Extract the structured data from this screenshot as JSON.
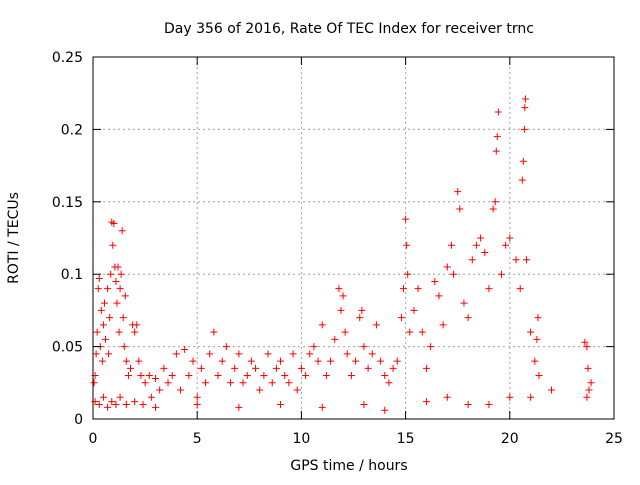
{
  "chart_data": {
    "type": "scatter",
    "title": "Day 356 of 2016, Rate Of TEC Index for receiver trnc",
    "xlabel": "GPS time / hours",
    "ylabel": "ROTI / TECUs",
    "xlim": [
      0,
      25
    ],
    "ylim": [
      0,
      0.25
    ],
    "x_ticks": [
      0,
      5,
      10,
      15,
      20,
      25
    ],
    "x_tick_labels": [
      "0",
      "5",
      "10",
      "15",
      "20",
      "25"
    ],
    "y_ticks": [
      0,
      0.05,
      0.1,
      0.15,
      0.2,
      0.25
    ],
    "y_tick_labels": [
      "0",
      "0.05",
      "0.1",
      "0.15",
      "0.2",
      "0.25"
    ],
    "grid": true,
    "marker": "+",
    "series": [
      {
        "name": "ROTI",
        "points": [
          [
            0.05,
            0.025
          ],
          [
            0.1,
            0.03
          ],
          [
            0.15,
            0.045
          ],
          [
            0.2,
            0.06
          ],
          [
            0.25,
            0.09
          ],
          [
            0.3,
            0.097
          ],
          [
            0.35,
            0.05
          ],
          [
            0.4,
            0.075
          ],
          [
            0.45,
            0.04
          ],
          [
            0.5,
            0.065
          ],
          [
            0.55,
            0.08
          ],
          [
            0.6,
            0.055
          ],
          [
            0.7,
            0.09
          ],
          [
            0.75,
            0.045
          ],
          [
            0.8,
            0.07
          ],
          [
            0.85,
            0.1
          ],
          [
            0.9,
            0.136
          ],
          [
            0.95,
            0.12
          ],
          [
            1.0,
            0.135
          ],
          [
            1.05,
            0.105
          ],
          [
            1.1,
            0.095
          ],
          [
            1.15,
            0.08
          ],
          [
            1.2,
            0.105
          ],
          [
            1.25,
            0.06
          ],
          [
            1.3,
            0.09
          ],
          [
            1.35,
            0.1
          ],
          [
            1.4,
            0.13
          ],
          [
            1.45,
            0.07
          ],
          [
            1.5,
            0.05
          ],
          [
            1.55,
            0.085
          ],
          [
            1.6,
            0.04
          ],
          [
            1.7,
            0.03
          ],
          [
            1.8,
            0.035
          ],
          [
            1.9,
            0.065
          ],
          [
            2.0,
            0.06
          ],
          [
            2.1,
            0.065
          ],
          [
            2.2,
            0.04
          ],
          [
            2.3,
            0.03
          ],
          [
            2.5,
            0.025
          ],
          [
            2.7,
            0.03
          ],
          [
            0.1,
            0.012
          ],
          [
            0.3,
            0.01
          ],
          [
            0.5,
            0.015
          ],
          [
            0.7,
            0.008
          ],
          [
            0.9,
            0.012
          ],
          [
            1.1,
            0.01
          ],
          [
            1.3,
            0.015
          ],
          [
            1.6,
            0.01
          ],
          [
            2.0,
            0.012
          ],
          [
            2.4,
            0.01
          ],
          [
            2.8,
            0.015
          ],
          [
            3.0,
            0.028
          ],
          [
            3.2,
            0.02
          ],
          [
            3.4,
            0.035
          ],
          [
            3.6,
            0.025
          ],
          [
            3.8,
            0.03
          ],
          [
            4.0,
            0.045
          ],
          [
            4.2,
            0.02
          ],
          [
            4.4,
            0.048
          ],
          [
            4.6,
            0.03
          ],
          [
            4.8,
            0.04
          ],
          [
            5.0,
            0.015
          ],
          [
            5.2,
            0.035
          ],
          [
            5.4,
            0.025
          ],
          [
            5.6,
            0.045
          ],
          [
            5.8,
            0.06
          ],
          [
            6.0,
            0.03
          ],
          [
            6.2,
            0.04
          ],
          [
            6.4,
            0.05
          ],
          [
            6.6,
            0.025
          ],
          [
            6.8,
            0.035
          ],
          [
            7.0,
            0.045
          ],
          [
            7.2,
            0.025
          ],
          [
            7.4,
            0.03
          ],
          [
            7.6,
            0.04
          ],
          [
            7.8,
            0.035
          ],
          [
            8.0,
            0.02
          ],
          [
            8.2,
            0.03
          ],
          [
            8.4,
            0.045
          ],
          [
            8.6,
            0.025
          ],
          [
            8.8,
            0.035
          ],
          [
            9.0,
            0.04
          ],
          [
            9.2,
            0.03
          ],
          [
            9.4,
            0.025
          ],
          [
            9.6,
            0.045
          ],
          [
            9.8,
            0.02
          ],
          [
            10.0,
            0.035
          ],
          [
            10.2,
            0.03
          ],
          [
            10.4,
            0.045
          ],
          [
            10.6,
            0.05
          ],
          [
            10.8,
            0.04
          ],
          [
            11.0,
            0.065
          ],
          [
            11.2,
            0.03
          ],
          [
            11.4,
            0.04
          ],
          [
            11.6,
            0.055
          ],
          [
            11.8,
            0.09
          ],
          [
            11.9,
            0.075
          ],
          [
            12.0,
            0.085
          ],
          [
            12.1,
            0.06
          ],
          [
            12.2,
            0.045
          ],
          [
            12.4,
            0.03
          ],
          [
            12.6,
            0.04
          ],
          [
            12.8,
            0.07
          ],
          [
            12.9,
            0.075
          ],
          [
            13.0,
            0.05
          ],
          [
            13.2,
            0.035
          ],
          [
            13.4,
            0.045
          ],
          [
            13.6,
            0.065
          ],
          [
            13.8,
            0.04
          ],
          [
            14.0,
            0.03
          ],
          [
            14.2,
            0.025
          ],
          [
            14.4,
            0.035
          ],
          [
            14.6,
            0.04
          ],
          [
            14.8,
            0.07
          ],
          [
            14.9,
            0.09
          ],
          [
            15.0,
            0.138
          ],
          [
            15.05,
            0.12
          ],
          [
            15.1,
            0.1
          ],
          [
            15.2,
            0.06
          ],
          [
            15.4,
            0.075
          ],
          [
            15.6,
            0.09
          ],
          [
            15.8,
            0.06
          ],
          [
            16.0,
            0.035
          ],
          [
            16.2,
            0.05
          ],
          [
            16.4,
            0.095
          ],
          [
            16.6,
            0.085
          ],
          [
            16.8,
            0.065
          ],
          [
            17.0,
            0.105
          ],
          [
            17.2,
            0.12
          ],
          [
            17.3,
            0.1
          ],
          [
            17.5,
            0.157
          ],
          [
            17.6,
            0.145
          ],
          [
            17.8,
            0.08
          ],
          [
            18.0,
            0.07
          ],
          [
            18.2,
            0.11
          ],
          [
            18.4,
            0.12
          ],
          [
            18.6,
            0.125
          ],
          [
            18.8,
            0.115
          ],
          [
            19.0,
            0.09
          ],
          [
            19.2,
            0.145
          ],
          [
            19.3,
            0.15
          ],
          [
            19.35,
            0.185
          ],
          [
            19.4,
            0.195
          ],
          [
            19.45,
            0.212
          ],
          [
            19.6,
            0.1
          ],
          [
            19.8,
            0.12
          ],
          [
            20.0,
            0.125
          ],
          [
            20.3,
            0.11
          ],
          [
            20.5,
            0.09
          ],
          [
            20.6,
            0.165
          ],
          [
            20.65,
            0.178
          ],
          [
            20.7,
            0.2
          ],
          [
            20.72,
            0.215
          ],
          [
            20.75,
            0.221
          ],
          [
            20.8,
            0.11
          ],
          [
            21.0,
            0.06
          ],
          [
            21.2,
            0.04
          ],
          [
            21.3,
            0.055
          ],
          [
            21.35,
            0.07
          ],
          [
            21.4,
            0.03
          ],
          [
            23.6,
            0.053
          ],
          [
            23.7,
            0.05
          ],
          [
            23.75,
            0.035
          ],
          [
            23.8,
            0.02
          ],
          [
            23.7,
            0.015
          ],
          [
            23.9,
            0.025
          ],
          [
            3.0,
            0.008
          ],
          [
            5.0,
            0.01
          ],
          [
            7.0,
            0.008
          ],
          [
            9.0,
            0.01
          ],
          [
            11.0,
            0.008
          ],
          [
            13.0,
            0.01
          ],
          [
            14.0,
            0.006
          ],
          [
            16.0,
            0.012
          ],
          [
            17.0,
            0.015
          ],
          [
            18.0,
            0.01
          ],
          [
            19.0,
            0.01
          ],
          [
            20.0,
            0.015
          ],
          [
            21.0,
            0.015
          ],
          [
            22.0,
            0.02
          ]
        ]
      }
    ]
  }
}
